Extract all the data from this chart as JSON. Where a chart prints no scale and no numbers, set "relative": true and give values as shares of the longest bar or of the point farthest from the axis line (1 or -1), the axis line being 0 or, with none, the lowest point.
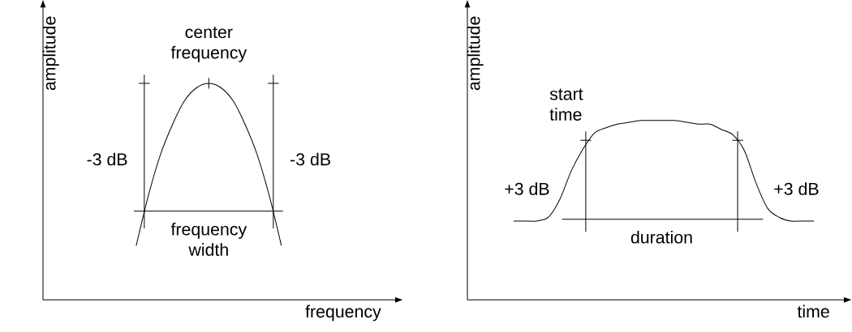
{
  "chart_data": [
    {
      "type": "line",
      "relative": true,
      "xlabel": "frequency",
      "ylabel": "amplitude",
      "categories": [
        null,
        null,
        null,
        null,
        null,
        null,
        null,
        null,
        null,
        null,
        null,
        null,
        null
      ],
      "series": [
        {
          "color": "#000000",
          "values": [
            0.25,
            0.48,
            0.67,
            0.81,
            0.92,
            0.98,
            1.0,
            0.98,
            0.92,
            0.81,
            0.67,
            0.48,
            0.25
          ]
        }
      ],
      "ref_lines": [
        {
          "axis": "y",
          "value": 0.41,
          "label": "frequency width"
        }
      ],
      "annotations": [
        "center frequency",
        "-3 dB",
        "-3 dB"
      ]
    },
    {
      "type": "line",
      "relative": true,
      "xlabel": "time",
      "ylabel": "amplitude",
      "categories": [
        null,
        null,
        null,
        null,
        null,
        null,
        null,
        null,
        null,
        null,
        null,
        null,
        null,
        null,
        null,
        null,
        null,
        null,
        null,
        null,
        null,
        null,
        null,
        null,
        null,
        null,
        null
      ],
      "series": [
        {
          "color": "#000000",
          "values": [
            0.44,
            0.44,
            0.44,
            0.46,
            0.56,
            0.72,
            0.84,
            0.93,
            0.96,
            0.98,
            0.99,
            1.0,
            1.0,
            1.0,
            1.0,
            0.99,
            0.98,
            0.98,
            0.95,
            0.92,
            0.83,
            0.65,
            0.51,
            0.46,
            0.44,
            0.44,
            0.44
          ]
        }
      ],
      "ref_lines": [
        {
          "axis": "y",
          "value": 0.45,
          "label": "duration"
        }
      ],
      "annotations": [
        "start time",
        "+3 dB",
        "+3 dB"
      ]
    }
  ]
}
